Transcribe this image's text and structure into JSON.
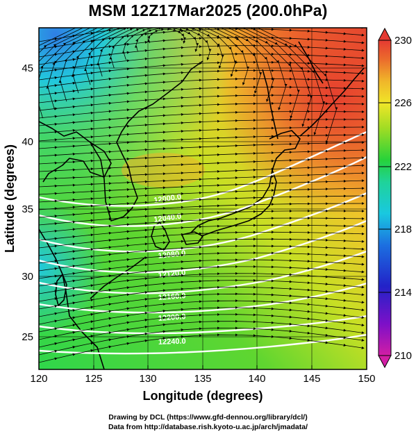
{
  "title": "MSM 12Z17Mar2025 (200.0hPa)",
  "x_axis": {
    "label": "Longitude (degrees)",
    "ticks": [
      "120",
      "125",
      "130",
      "135",
      "140",
      "145",
      "150"
    ]
  },
  "y_axis": {
    "label": "Latitude  (degrees)",
    "ticks": [
      "25",
      "30",
      "35",
      "40",
      "45"
    ]
  },
  "colorbar": {
    "ticks": [
      "230",
      "226",
      "222",
      "218",
      "214",
      "210"
    ],
    "min": 210,
    "max": 230,
    "colors": [
      "#d21ea5",
      "#7d10c8",
      "#2222c8",
      "#1c6fe0",
      "#19c8e0",
      "#1fd39a",
      "#26d23a",
      "#9fdc24",
      "#f0e628",
      "#f0b62a",
      "#eb6b2c",
      "#e53a32"
    ]
  },
  "contour_labels": [
    "12000.0",
    "12040.0",
    "12080.0",
    "12120.0",
    "12160.0",
    "12200.0",
    "12240.0"
  ],
  "credits": {
    "line1": "Drawing by DCL (https://www.gfd-dennou.org/library/dcl/)",
    "line2": "Data from http://database.rish.kyoto-u.ac.jp/arch/jmadata/"
  }
}
